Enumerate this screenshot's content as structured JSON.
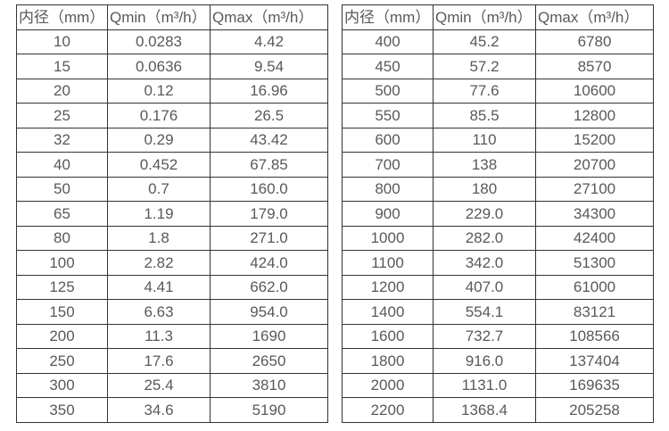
{
  "colors": {
    "background": "#ffffff",
    "border": "#333333",
    "text": "#595959"
  },
  "chart_data": [
    {
      "type": "table",
      "title": "",
      "columns": [
        "内径（mm）",
        "Qmin（m³/h）",
        "Qmax（m³/h）"
      ],
      "rows": [
        [
          "10",
          "0.0283",
          "4.42"
        ],
        [
          "15",
          "0.0636",
          "9.54"
        ],
        [
          "20",
          "0.12",
          "16.96"
        ],
        [
          "25",
          "0.176",
          "26.5"
        ],
        [
          "32",
          "0.29",
          "43.42"
        ],
        [
          "40",
          "0.452",
          "67.85"
        ],
        [
          "50",
          "0.7",
          "160.0"
        ],
        [
          "65",
          "1.19",
          "179.0"
        ],
        [
          "80",
          "1.8",
          "271.0"
        ],
        [
          "100",
          "2.82",
          "424.0"
        ],
        [
          "125",
          "4.41",
          "662.0"
        ],
        [
          "150",
          "6.63",
          "954.0"
        ],
        [
          "200",
          "11.3",
          "1690"
        ],
        [
          "250",
          "17.6",
          "2650"
        ],
        [
          "300",
          "25.4",
          "3810"
        ],
        [
          "350",
          "34.6",
          "5190"
        ]
      ]
    },
    {
      "type": "table",
      "title": "",
      "columns": [
        "内径（mm）",
        "Qmin（m³/h）",
        "Qmax（m³/h）"
      ],
      "rows": [
        [
          "400",
          "45.2",
          "6780"
        ],
        [
          "450",
          "57.2",
          "8570"
        ],
        [
          "500",
          "77.6",
          "10600"
        ],
        [
          "550",
          "85.5",
          "12800"
        ],
        [
          "600",
          "110",
          "15200"
        ],
        [
          "700",
          "138",
          "20700"
        ],
        [
          "800",
          "180",
          "27100"
        ],
        [
          "900",
          "229.0",
          "34300"
        ],
        [
          "1000",
          "282.0",
          "42400"
        ],
        [
          "1100",
          "342.0",
          "51300"
        ],
        [
          "1200",
          "407.0",
          "61000"
        ],
        [
          "1400",
          "554.1",
          "83121"
        ],
        [
          "1600",
          "732.7",
          "108566"
        ],
        [
          "1800",
          "916.0",
          "137404"
        ],
        [
          "2000",
          "1131.0",
          "169635"
        ],
        [
          "2200",
          "1368.4",
          "205258"
        ]
      ]
    }
  ]
}
